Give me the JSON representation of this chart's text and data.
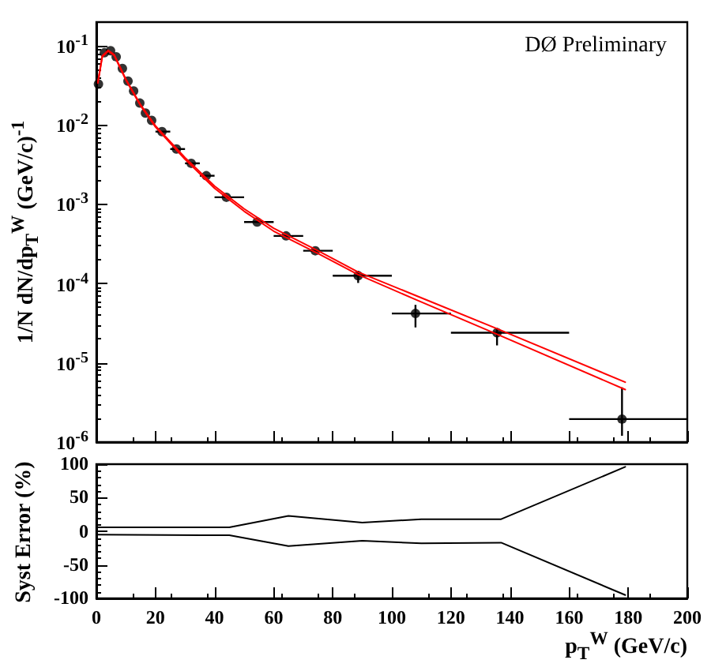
{
  "chart_data": [
    {
      "type": "scatter",
      "ylabel": "1/N dN/dp$_{T}$$^{W}$ (GeV/c)$^{-1}$",
      "annotations": [
        "DØ Preliminary"
      ],
      "log": true,
      "grid": false,
      "tick_labels": "y",
      "xlim": [
        0,
        200
      ],
      "xticks": [
        0,
        20,
        40,
        60,
        80,
        100,
        120,
        140,
        160,
        180,
        200
      ],
      "ylim": [
        1e-06,
        0.2
      ],
      "yticks": [
        {
          "value": 0.1,
          "label": "10$^{-1}$"
        },
        {
          "value": 0.01,
          "label": "10$^{-2}$"
        },
        {
          "value": 0.001,
          "label": "10$^{-3}$"
        },
        {
          "value": 0.0001,
          "label": "10$^{-4}$"
        },
        {
          "value": 1e-05,
          "label": "10$^{-5}$"
        },
        {
          "value": 1e-06,
          "label": "10$^{-6}$"
        }
      ],
      "series": [
        {
          "type": "line",
          "color": "#ff0000",
          "x": [
            0.5,
            2,
            4,
            6,
            10,
            15,
            20,
            30,
            40,
            50,
            60,
            75,
            88.6,
            108,
            135.6,
            179
          ],
          "values": [
            0.035,
            0.075,
            0.088,
            0.078,
            0.038,
            0.018,
            0.0098,
            0.0039,
            0.0017,
            0.00088,
            0.0005,
            0.00026,
            0.00014,
            7.1e-05,
            2.7e-05,
            5.7e-06
          ]
        },
        {
          "type": "line",
          "color": "#ff0000",
          "x": [
            0.5,
            2,
            4,
            6,
            10,
            15,
            20,
            30,
            40,
            50,
            60,
            75,
            88.6,
            108,
            135.6,
            179
          ],
          "values": [
            0.034,
            0.073,
            0.086,
            0.076,
            0.037,
            0.0175,
            0.0095,
            0.0037,
            0.0016,
            0.00082,
            0.00046,
            0.00024,
            0.00013,
            6.3e-05,
            2.3e-05,
            4.6e-06
          ]
        },
        {
          "color": "#000000",
          "marker": "circle",
          "x": [
            0.7,
            2.7,
            4.8,
            6.7,
            8.8,
            10.7,
            12.6,
            14.7,
            16.6,
            18.7,
            22.2,
            27.1,
            32.1,
            37.2,
            44,
            54.4,
            64.2,
            74.1,
            88.6,
            108,
            135.6,
            177.9
          ],
          "values": [
            0.033,
            0.082,
            0.087,
            0.073,
            0.052,
            0.036,
            0.027,
            0.019,
            0.0142,
            0.0115,
            0.0083,
            0.005,
            0.0033,
            0.0023,
            0.00123,
            0.0006,
            0.0004,
            0.00026,
            0.000126,
            4.2e-05,
            2.4e-05,
            1.95e-06
          ],
          "errors": [
            null,
            null,
            null,
            null,
            null,
            null,
            null,
            null,
            null,
            null,
            null,
            null,
            null,
            null,
            null,
            null,
            null,
            null,
            [
              0.000102,
              0.000145
            ],
            [
              2.8e-05,
              5.4e-05
            ],
            [
              1.66e-05,
              2.75e-05
            ],
            [
              1.2e-06,
              4.9e-06
            ]
          ],
          "xerrors": [
            null,
            null,
            null,
            null,
            null,
            null,
            null,
            null,
            null,
            null,
            [
              20,
              25
            ],
            [
              25,
              30
            ],
            [
              30,
              35
            ],
            [
              35,
              40
            ],
            [
              40,
              50
            ],
            [
              50,
              60
            ],
            [
              60,
              70
            ],
            [
              70,
              80
            ],
            [
              80,
              100
            ],
            [
              100,
              120
            ],
            [
              120,
              160
            ],
            [
              160,
              200
            ]
          ]
        }
      ]
    },
    {
      "type": "line",
      "xlabel": "p$_{T}$$^{W}$ (GeV/c)",
      "ylabel": "Syst Error (%)",
      "grid": false,
      "xlim": [
        0,
        200
      ],
      "xticks": [
        0,
        20,
        40,
        60,
        80,
        100,
        120,
        140,
        160,
        180,
        200
      ],
      "ylim": [
        -100,
        100
      ],
      "yticks": [
        -100,
        -50,
        0,
        50,
        100
      ],
      "series": [
        {
          "color": "#000000",
          "x": [
            0.3,
            45,
            65,
            90,
            110,
            137,
            179
          ],
          "values": [
            6,
            6,
            23,
            13,
            18,
            18,
            96
          ]
        },
        {
          "color": "#000000",
          "x": [
            0.3,
            45,
            65,
            90,
            110,
            137,
            179
          ],
          "values": [
            -5,
            -6,
            -22,
            -14,
            -18,
            -17,
            -95
          ]
        }
      ]
    }
  ]
}
